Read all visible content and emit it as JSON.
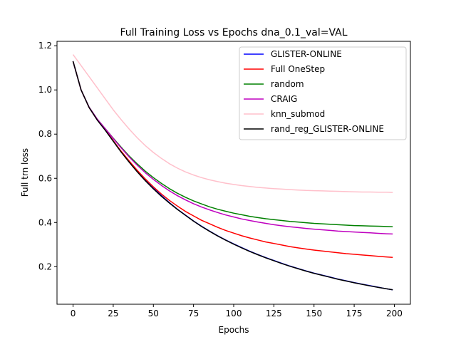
{
  "chart_data": {
    "type": "line",
    "title": "Full Training Loss vs Epochs dna_0.1_val=VAL",
    "xlabel": "Epochs",
    "ylabel": "Full trn loss",
    "xlim": [
      -10,
      210
    ],
    "ylim": [
      0.03,
      1.22
    ],
    "xticks": [
      0,
      25,
      50,
      75,
      100,
      125,
      150,
      175,
      200
    ],
    "xtick_labels": [
      "0",
      "25",
      "50",
      "75",
      "100",
      "125",
      "150",
      "175",
      "200"
    ],
    "yticks": [
      0.2,
      0.4,
      0.6,
      0.8,
      1.0,
      1.2
    ],
    "ytick_labels": [
      "0.2",
      "0.4",
      "0.6",
      "0.8",
      "1.0",
      "1.2"
    ],
    "grid": false,
    "legend_position": "top-right",
    "x": [
      0,
      5,
      10,
      15,
      20,
      25,
      30,
      35,
      40,
      45,
      50,
      55,
      60,
      65,
      70,
      75,
      80,
      85,
      90,
      95,
      100,
      105,
      110,
      115,
      120,
      125,
      130,
      135,
      140,
      145,
      150,
      155,
      160,
      165,
      170,
      175,
      180,
      185,
      190,
      195,
      199
    ],
    "series": [
      {
        "name": "GLISTER-ONLINE",
        "color": "#0000ff",
        "values": [
          1.13,
          1.0,
          0.92,
          0.865,
          0.82,
          0.77,
          0.72,
          0.675,
          0.632,
          0.592,
          0.555,
          0.522,
          0.49,
          0.46,
          0.433,
          0.407,
          0.383,
          0.361,
          0.34,
          0.321,
          0.303,
          0.286,
          0.27,
          0.255,
          0.241,
          0.228,
          0.215,
          0.203,
          0.192,
          0.181,
          0.171,
          0.162,
          0.153,
          0.144,
          0.136,
          0.128,
          0.121,
          0.114,
          0.107,
          0.1,
          0.095
        ]
      },
      {
        "name": "Full OneStep",
        "color": "#ff0000",
        "values": [
          1.13,
          1.0,
          0.92,
          0.865,
          0.82,
          0.77,
          0.722,
          0.678,
          0.636,
          0.597,
          0.561,
          0.529,
          0.5,
          0.474,
          0.45,
          0.43,
          0.41,
          0.394,
          0.378,
          0.364,
          0.352,
          0.34,
          0.33,
          0.321,
          0.312,
          0.305,
          0.298,
          0.291,
          0.285,
          0.28,
          0.275,
          0.271,
          0.267,
          0.263,
          0.259,
          0.256,
          0.253,
          0.25,
          0.247,
          0.244,
          0.242
        ]
      },
      {
        "name": "random",
        "color": "#008000",
        "values": [
          1.13,
          1.0,
          0.922,
          0.868,
          0.825,
          0.782,
          0.74,
          0.7,
          0.665,
          0.632,
          0.603,
          0.577,
          0.553,
          0.532,
          0.514,
          0.498,
          0.484,
          0.471,
          0.46,
          0.451,
          0.442,
          0.435,
          0.428,
          0.422,
          0.417,
          0.413,
          0.409,
          0.405,
          0.402,
          0.399,
          0.396,
          0.394,
          0.392,
          0.39,
          0.388,
          0.386,
          0.385,
          0.384,
          0.383,
          0.382,
          0.381
        ]
      },
      {
        "name": "CRAIG",
        "color": "#bf00bf",
        "values": [
          1.13,
          1.0,
          0.922,
          0.868,
          0.825,
          0.78,
          0.737,
          0.696,
          0.659,
          0.625,
          0.595,
          0.568,
          0.543,
          0.521,
          0.502,
          0.485,
          0.47,
          0.457,
          0.445,
          0.434,
          0.425,
          0.416,
          0.409,
          0.402,
          0.396,
          0.39,
          0.385,
          0.381,
          0.377,
          0.373,
          0.37,
          0.367,
          0.364,
          0.361,
          0.359,
          0.357,
          0.355,
          0.353,
          0.351,
          0.349,
          0.348
        ]
      },
      {
        "name": "knn_submod",
        "color": "#ffc0cb",
        "values": [
          1.16,
          1.11,
          1.06,
          1.01,
          0.96,
          0.91,
          0.865,
          0.822,
          0.783,
          0.748,
          0.717,
          0.69,
          0.666,
          0.646,
          0.629,
          0.615,
          0.603,
          0.593,
          0.585,
          0.578,
          0.572,
          0.567,
          0.563,
          0.559,
          0.556,
          0.553,
          0.551,
          0.549,
          0.547,
          0.545,
          0.544,
          0.543,
          0.542,
          0.541,
          0.54,
          0.539,
          0.538,
          0.538,
          0.537,
          0.537,
          0.536
        ]
      },
      {
        "name": "rand_reg_GLISTER-ONLINE",
        "color": "#000000",
        "values": [
          1.13,
          1.0,
          0.92,
          0.864,
          0.818,
          0.768,
          0.718,
          0.672,
          0.629,
          0.589,
          0.552,
          0.519,
          0.488,
          0.459,
          0.432,
          0.406,
          0.382,
          0.36,
          0.339,
          0.32,
          0.302,
          0.285,
          0.269,
          0.254,
          0.24,
          0.227,
          0.214,
          0.202,
          0.191,
          0.18,
          0.17,
          0.161,
          0.152,
          0.143,
          0.135,
          0.127,
          0.12,
          0.113,
          0.106,
          0.1,
          0.095
        ]
      }
    ]
  }
}
